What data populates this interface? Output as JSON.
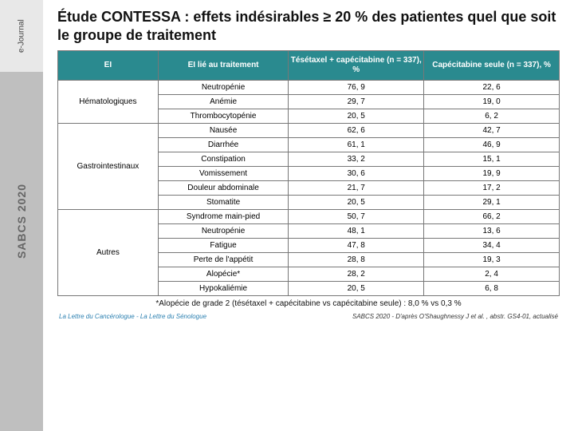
{
  "sidebar": {
    "ejournal_label": "e-Journal",
    "sabcs_label": "SABCS 2020"
  },
  "title": "Étude CONTESSA : effets indésirables ≥ 20 % des patientes quel que soit le groupe de traitement",
  "table": {
    "header_bg": "#2a8a8f",
    "header_fg": "#ffffff",
    "border_color": "#777777",
    "fontsize": 10,
    "columns": [
      "EI",
      "EI lié au traitement",
      "Tésétaxel + capécitabine (n = 337), %",
      "Capécitabine seule (n = 337), %"
    ],
    "groups": [
      {
        "category": "Hématologiques",
        "rows": [
          {
            "label": "Neutropénie",
            "a": "76, 9",
            "b": "22, 6"
          },
          {
            "label": "Anémie",
            "a": "29, 7",
            "b": "19, 0"
          },
          {
            "label": "Thrombocytopénie",
            "a": "20, 5",
            "b": "6, 2"
          }
        ]
      },
      {
        "category": "Gastrointestinaux",
        "rows": [
          {
            "label": "Nausée",
            "a": "62, 6",
            "b": "42, 7"
          },
          {
            "label": "Diarrhée",
            "a": "61, 1",
            "b": "46, 9"
          },
          {
            "label": "Constipation",
            "a": "33, 2",
            "b": "15, 1"
          },
          {
            "label": "Vomissement",
            "a": "30, 6",
            "b": "19, 9"
          },
          {
            "label": "Douleur abdominale",
            "a": "21, 7",
            "b": "17, 2"
          },
          {
            "label": "Stomatite",
            "a": "20, 5",
            "b": "29, 1"
          }
        ]
      },
      {
        "category": "Autres",
        "rows": [
          {
            "label": "Syndrome main-pied",
            "a": "50, 7",
            "b": "66, 2"
          },
          {
            "label": "Neutropénie",
            "a": "48, 1",
            "b": "13, 6"
          },
          {
            "label": "Fatigue",
            "a": "47, 8",
            "b": "34, 4"
          },
          {
            "label": "Perte de l'appétit",
            "a": "28, 8",
            "b": "19, 3"
          },
          {
            "label": "Alopécie*",
            "a": "28, 2",
            "b": "2, 4"
          },
          {
            "label": "Hypokaliémie",
            "a": "20, 5",
            "b": "6, 8"
          }
        ]
      }
    ]
  },
  "footnote": "*Alopécie de grade 2 (tésétaxel + capécitabine vs capécitabine seule) : 8,0 % vs 0,3 %",
  "footer": {
    "left": "La Lettre du Cancérologue - La Lettre du Sénologue",
    "right": "SABCS 2020 - D'après  O'Shaughnessy J et al. , abstr. GS4-01, actualisé"
  }
}
